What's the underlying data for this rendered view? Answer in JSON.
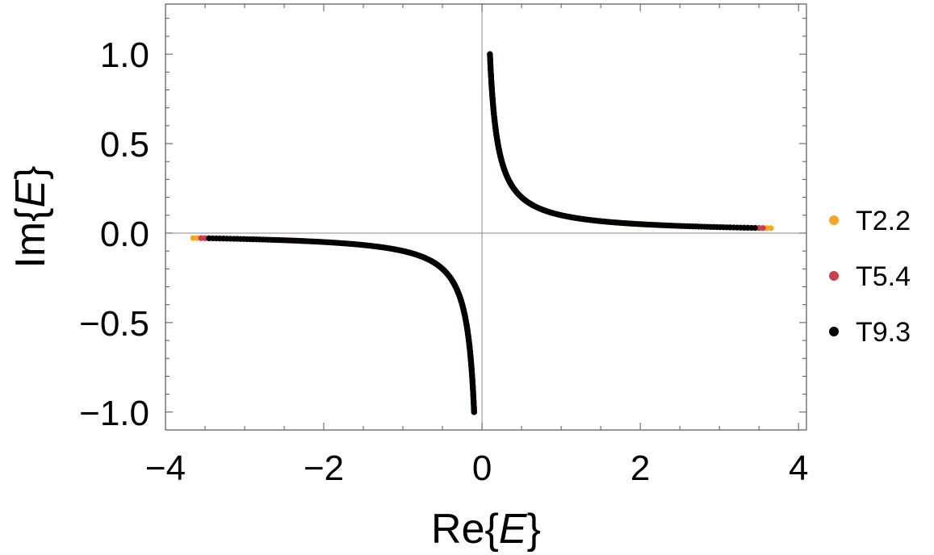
{
  "chart_data": {
    "type": "scatter",
    "title": "",
    "xlabel": {
      "prefix": "Re{",
      "var": "E",
      "suffix": "}"
    },
    "ylabel": {
      "prefix": "Im{",
      "var": "E",
      "suffix": "}"
    },
    "xlim": [
      -4,
      4.1
    ],
    "ylim": [
      -1.1,
      1.28
    ],
    "x_ticks": [
      -4,
      -2,
      0,
      2,
      4
    ],
    "x_tick_labels": [
      "−4",
      "−2",
      "0",
      "2",
      "4"
    ],
    "y_ticks": [
      -1.0,
      -0.5,
      0.0,
      0.5,
      1.0
    ],
    "y_tick_labels": [
      "−1.0",
      "−0.5",
      "0.0",
      "0.5",
      "1.0"
    ],
    "grid": false,
    "zero_lines": true,
    "legend_position": "right",
    "curve_relation": "y = 0.1 / x",
    "series": [
      {
        "name": "T2.2",
        "color": "#f5a623",
        "x_min": 0.1,
        "x_max": 3.65
      },
      {
        "name": "T5.4",
        "color": "#c8404a",
        "x_min": 0.1,
        "x_max": 3.55
      },
      {
        "name": "T9.3",
        "color": "#000000",
        "x_min": 0.1,
        "x_max": 3.45
      }
    ]
  }
}
